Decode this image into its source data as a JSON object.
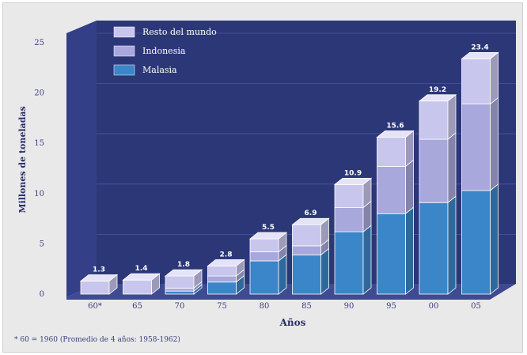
{
  "chart_data": {
    "type": "bar",
    "stacked": true,
    "categories": [
      "60*",
      "65",
      "70",
      "75",
      "80",
      "85",
      "90",
      "95",
      "00",
      "05"
    ],
    "series": [
      {
        "name": "Malasia",
        "values": [
          0.0,
          0.0,
          0.3,
          1.2,
          3.3,
          3.9,
          6.2,
          8.0,
          9.1,
          10.3
        ],
        "color": "#3a86c8"
      },
      {
        "name": "Indonesia",
        "values": [
          0.0,
          0.0,
          0.3,
          0.6,
          0.9,
          0.9,
          2.4,
          4.7,
          6.3,
          8.6
        ],
        "color": "#a9a8dc"
      },
      {
        "name": "Resto del mundo",
        "values": [
          1.3,
          1.4,
          1.2,
          1.0,
          1.3,
          2.1,
          2.3,
          2.9,
          3.8,
          4.5
        ],
        "color": "#c8c6ec"
      }
    ],
    "totals": [
      "1.3",
      "1.4",
      "1.8",
      "2.8",
      "5.5",
      "6.9",
      "10.9",
      "15.6",
      "19.2",
      "23.4"
    ],
    "yticks": [
      "0",
      "5",
      "10",
      "15",
      "20",
      "25"
    ],
    "ylim": [
      0,
      25
    ],
    "xlabel": "Años",
    "ylabel": "Millones de toneladas",
    "legend_position": "top-left",
    "footnote": "* 60 = 1960 (Promedio de 4 años: 1958-1962)",
    "background_color": "#2c3778",
    "grid": true
  }
}
